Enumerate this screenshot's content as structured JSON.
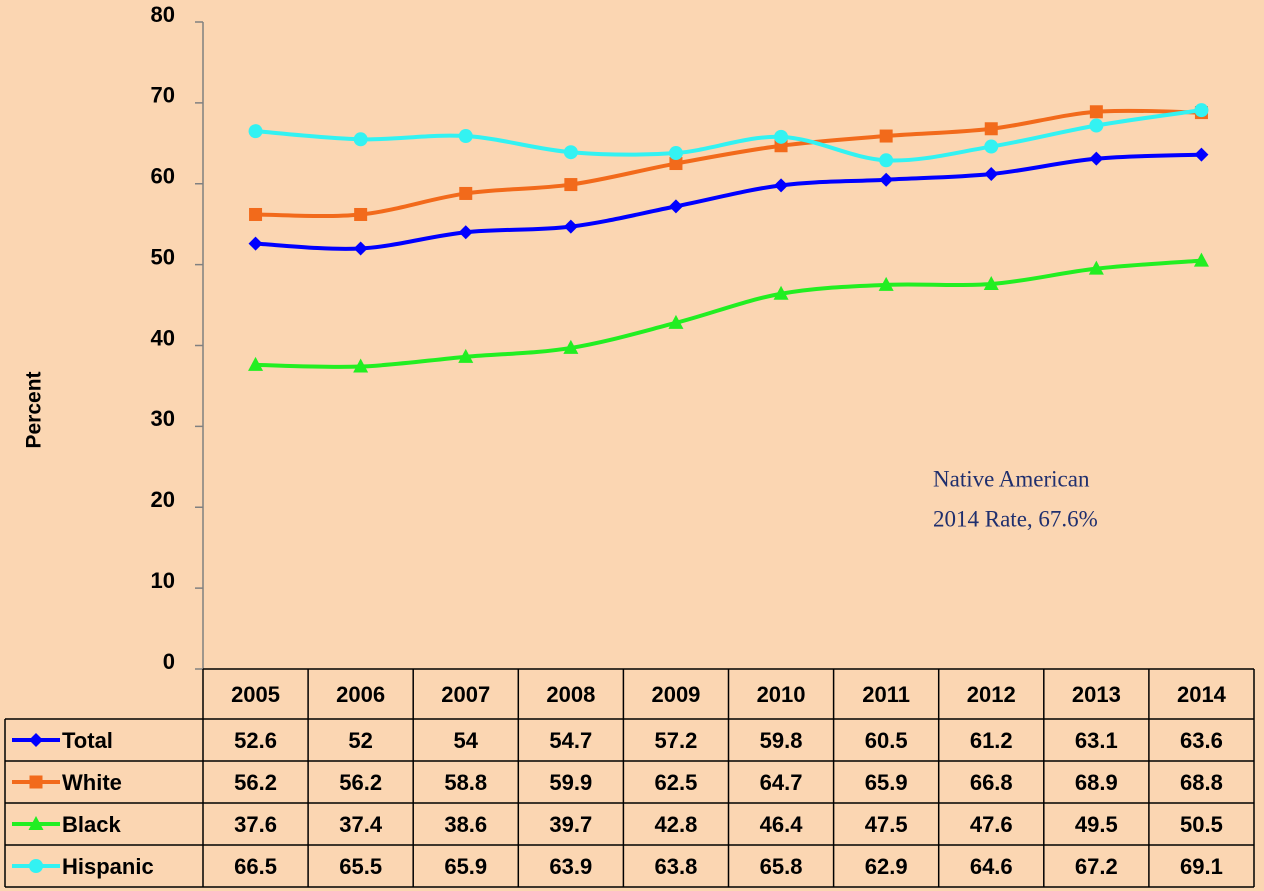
{
  "chart_data": {
    "type": "line",
    "y_label": "Percent",
    "annotation": [
      "Native American",
      "2014 Rate,  67.6%"
    ],
    "categories": [
      "2005",
      "2006",
      "2007",
      "2008",
      "2009",
      "2010",
      "2011",
      "2012",
      "2013",
      "2014"
    ],
    "series": [
      {
        "name": "Total",
        "color": "#0000ff",
        "marker": "diamond",
        "values": [
          52.6,
          52,
          54,
          54.7,
          57.2,
          59.8,
          60.5,
          61.2,
          63.1,
          63.6
        ]
      },
      {
        "name": "White",
        "color": "#f26a1b",
        "marker": "square",
        "values": [
          56.2,
          56.2,
          58.8,
          59.9,
          62.5,
          64.7,
          65.9,
          66.8,
          68.9,
          68.8
        ]
      },
      {
        "name": "Black",
        "color": "#22ee22",
        "marker": "triangle",
        "values": [
          37.6,
          37.4,
          38.6,
          39.7,
          42.8,
          46.4,
          47.5,
          47.6,
          49.5,
          50.5
        ]
      },
      {
        "name": "Hispanic",
        "color": "#33f2f2",
        "marker": "circle",
        "values": [
          66.5,
          65.5,
          65.9,
          63.9,
          63.8,
          65.8,
          62.9,
          64.6,
          67.2,
          69.1
        ]
      }
    ],
    "ylim": [
      0,
      80
    ],
    "yticks": [
      0,
      10,
      20,
      30,
      40,
      50,
      60,
      70,
      80
    ],
    "grid": false,
    "data_table": true
  }
}
